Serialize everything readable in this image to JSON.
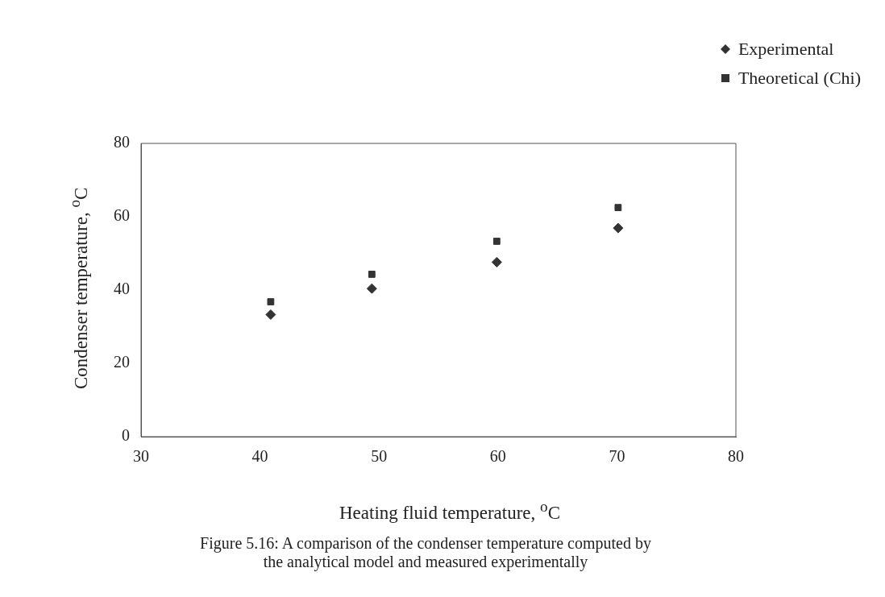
{
  "chart_data": {
    "type": "scatter",
    "xlabel": "Heating fluid temperature, $^{o}$C",
    "ylabel": "Condenser temperature, $^{o}$C",
    "x": [
      40.9,
      49.4,
      59.9,
      70.1
    ],
    "series": [
      {
        "name": "Experimental",
        "color": "#333333",
        "values": [
          33.3,
          40.4,
          47.6,
          56.9
        ],
        "marker": "diamond"
      },
      {
        "name": "Theoretical (Chi)",
        "color": "#333333",
        "values": [
          36.8,
          44.3,
          53.3,
          62.5
        ],
        "marker": "square"
      }
    ],
    "xlim": [
      30,
      80
    ],
    "xticks": [
      30,
      40,
      50,
      60,
      70,
      80
    ],
    "ylim": [
      0,
      80
    ],
    "yticks": [
      0,
      20,
      40,
      60,
      80
    ],
    "grid": false,
    "legend": "top right",
    "annotations": [
      "Figure 5.16: A comparison of the condenser temperature computed by\nthe analytical model and measured experimentally"
    ]
  }
}
